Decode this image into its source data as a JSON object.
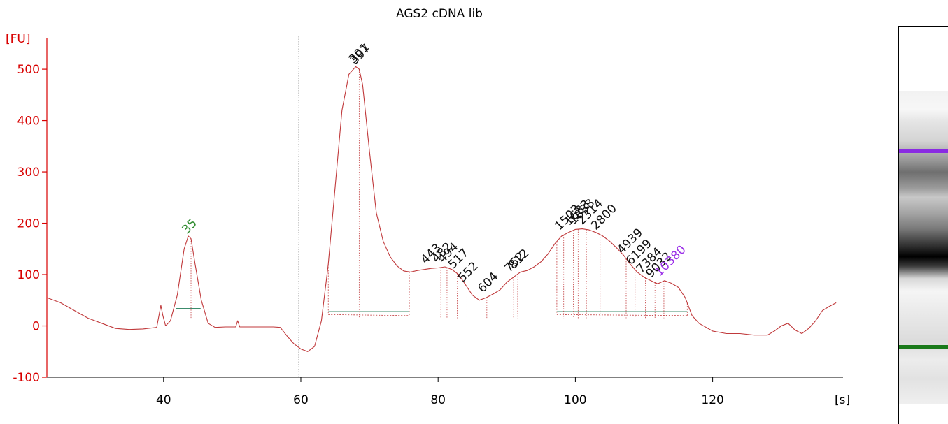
{
  "chart_data": {
    "type": "line",
    "title": "AGS2 cDNA lib",
    "ylabel": "[FU]",
    "xlabel": "[s]",
    "xlim": [
      23,
      139
    ],
    "ylim": [
      -100,
      560
    ],
    "xticks": [
      40,
      60,
      80,
      100,
      120
    ],
    "yticks": [
      -100,
      0,
      100,
      200,
      300,
      400,
      500
    ],
    "vertical_markers": [
      59.7,
      93.7
    ],
    "trace_color": "#c0393b",
    "series": [
      {
        "x": [
          23,
          25,
          27,
          29,
          31,
          33,
          35,
          37,
          39,
          39.6,
          39.9,
          40.3,
          41,
          42,
          43,
          43.6,
          44,
          44.6,
          45.5,
          46.5,
          47.5,
          49,
          50.5,
          50.8,
          51.1,
          52,
          54,
          56,
          57,
          58,
          59,
          60,
          61,
          62,
          63,
          64,
          65,
          66,
          67,
          68,
          68.5,
          69,
          70,
          71,
          72,
          73,
          74,
          75,
          76,
          77,
          78,
          79,
          80,
          81,
          82,
          83,
          84,
          85,
          86,
          87,
          88,
          89,
          90,
          91,
          92,
          93,
          94,
          95,
          96,
          97,
          98,
          99,
          100,
          101,
          102,
          103,
          104,
          105,
          106,
          107,
          108,
          109,
          110,
          111,
          112,
          113,
          114,
          115,
          116,
          117,
          118,
          120,
          122,
          124,
          126,
          128,
          129,
          130,
          131,
          132,
          133,
          134,
          135,
          136,
          137,
          138
        ],
        "y": [
          55,
          45,
          30,
          15,
          5,
          -5,
          -7,
          -6,
          -3,
          40,
          20,
          0,
          10,
          60,
          150,
          175,
          170,
          120,
          50,
          5,
          -3,
          -2,
          -2,
          10,
          -2,
          -2,
          -2,
          -2,
          -3,
          -20,
          -35,
          -45,
          -50,
          -40,
          10,
          120,
          270,
          420,
          490,
          505,
          500,
          470,
          340,
          220,
          165,
          135,
          117,
          107,
          105,
          108,
          110,
          112,
          113,
          115,
          110,
          100,
          80,
          60,
          50,
          55,
          62,
          70,
          85,
          95,
          105,
          108,
          115,
          125,
          140,
          160,
          175,
          182,
          188,
          189,
          187,
          182,
          175,
          165,
          152,
          138,
          120,
          105,
          95,
          88,
          82,
          88,
          83,
          75,
          55,
          20,
          5,
          -10,
          -15,
          -15,
          -18,
          -18,
          -10,
          0,
          5,
          -8,
          -15,
          -5,
          10,
          30,
          38,
          45
        ]
      }
    ],
    "markers": [
      {
        "label": "35",
        "color": "#2e8b2e",
        "x": 44.0
      },
      {
        "label": "301",
        "color": "#111111",
        "x": 68.3
      },
      {
        "label": "397",
        "color": "#111111",
        "x": 68.5
      },
      {
        "label": "443",
        "color": "#111111",
        "x": 78.8
      },
      {
        "label": "482",
        "color": "#111111",
        "x": 80.4
      },
      {
        "label": "494",
        "color": "#111111",
        "x": 81.3
      },
      {
        "label": "517",
        "color": "#111111",
        "x": 82.8
      },
      {
        "label": "552",
        "color": "#111111",
        "x": 84.2
      },
      {
        "label": "604",
        "color": "#111111",
        "x": 87.1
      },
      {
        "label": "752",
        "color": "#111111",
        "x": 91.0
      },
      {
        "label": "812",
        "color": "#111111",
        "x": 91.6
      },
      {
        "label": "1503",
        "color": "#111111",
        "x": 98.3
      },
      {
        "label": "1683",
        "color": "#111111",
        "x": 99.7
      },
      {
        "label": "1833",
        "color": "#111111",
        "x": 100.4
      },
      {
        "label": "2314",
        "color": "#111111",
        "x": 101.6
      },
      {
        "label": "2800",
        "color": "#111111",
        "x": 103.6
      },
      {
        "label": "4939",
        "color": "#111111",
        "x": 107.4
      },
      {
        "label": "6199",
        "color": "#111111",
        "x": 108.7
      },
      {
        "label": "7384",
        "color": "#111111",
        "x": 110.2
      },
      {
        "label": "9032",
        "color": "#111111",
        "x": 111.6
      },
      {
        "label": "10380",
        "color": "#9b30e8",
        "x": 112.9
      }
    ],
    "smear_regions": [
      {
        "start": 64.0,
        "end": 75.8
      },
      {
        "start": 97.3,
        "end": 116.3
      }
    ]
  },
  "gel": {
    "upper_marker_color": "#8a2be2",
    "lower_marker_color": "#1a7a1a"
  }
}
